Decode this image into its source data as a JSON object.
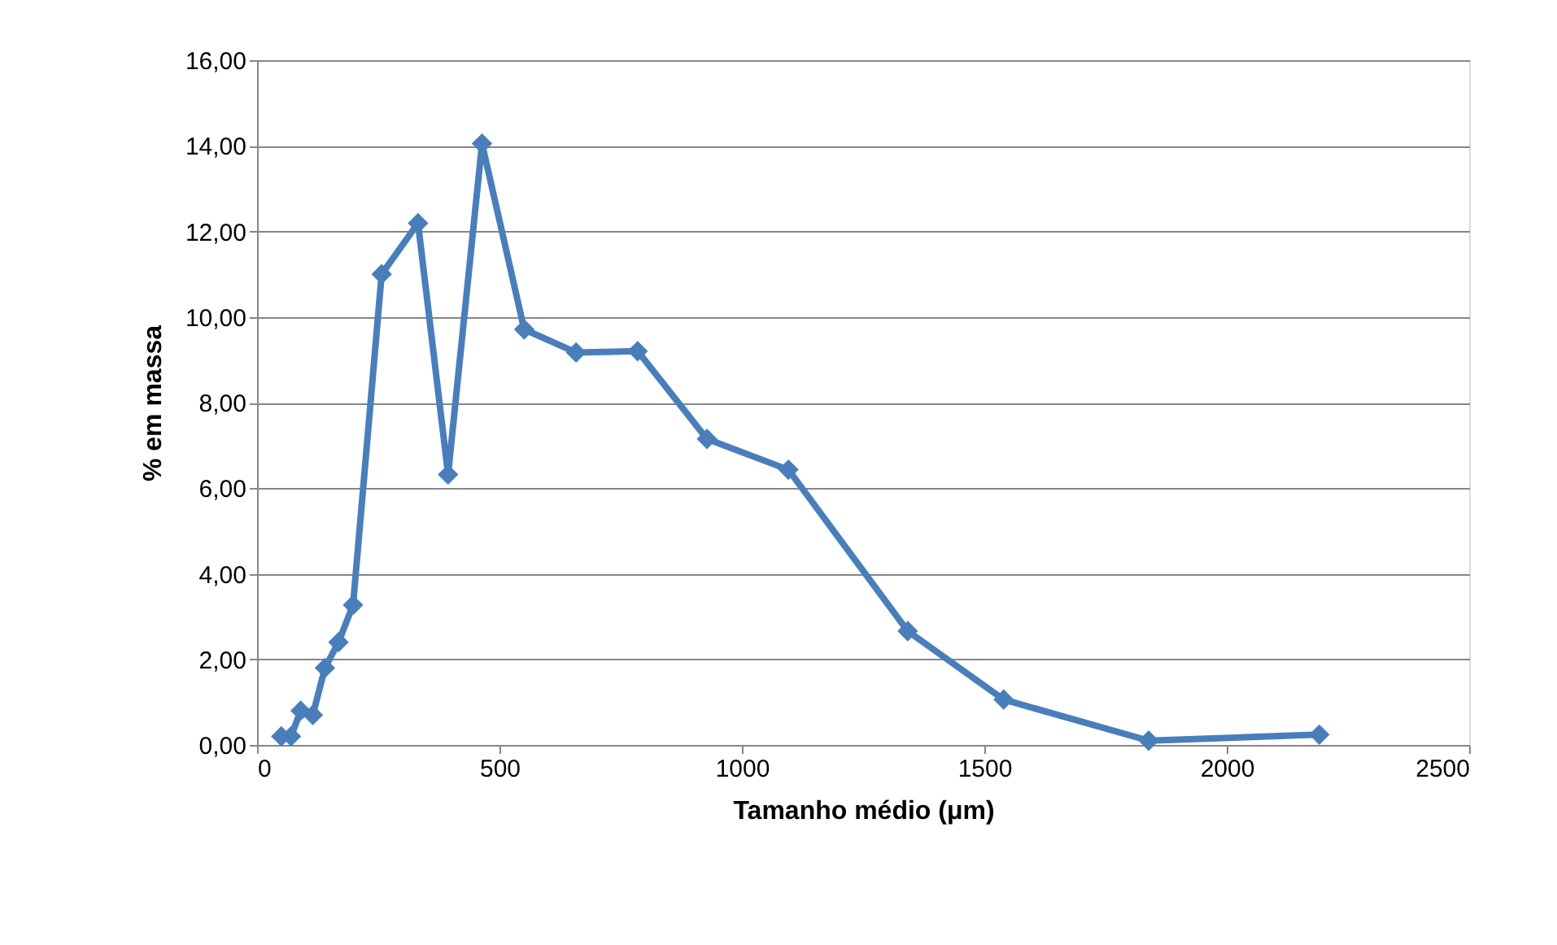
{
  "chart_data": {
    "type": "line",
    "xlabel": "Tamanho médio (μm)",
    "ylabel": "% em massa",
    "x": [
      50,
      70,
      90,
      115,
      140,
      168,
      198,
      257,
      332,
      394,
      464,
      551,
      658,
      785,
      928,
      1096,
      1342,
      1540,
      1839,
      2191
    ],
    "series": [
      {
        "color": "#4a7ebb",
        "values": [
          0.2,
          0.2,
          0.8,
          0.7,
          1.8,
          2.4,
          3.27,
          11.0,
          12.19,
          6.32,
          14.05,
          9.71,
          9.17,
          9.2,
          7.15,
          6.43,
          2.66,
          1.06,
          0.1,
          0.24
        ]
      }
    ],
    "xlim": [
      0,
      2500
    ],
    "xticks": [
      0,
      500,
      1000,
      1500,
      2000,
      2500
    ],
    "ylim": [
      0,
      16
    ],
    "yticks": [
      {
        "value": 0,
        "label": "0,00"
      },
      {
        "value": 2,
        "label": "2,00"
      },
      {
        "value": 4,
        "label": "4,00"
      },
      {
        "value": 6,
        "label": "6,00"
      },
      {
        "value": 8,
        "label": "8,00"
      },
      {
        "value": 10,
        "label": "10,00"
      },
      {
        "value": 12,
        "label": "12,00"
      },
      {
        "value": 14,
        "label": "14,00"
      },
      {
        "value": 16,
        "label": "16,00"
      }
    ],
    "grid": "y",
    "marker": "diamond",
    "line_style": "solid"
  }
}
